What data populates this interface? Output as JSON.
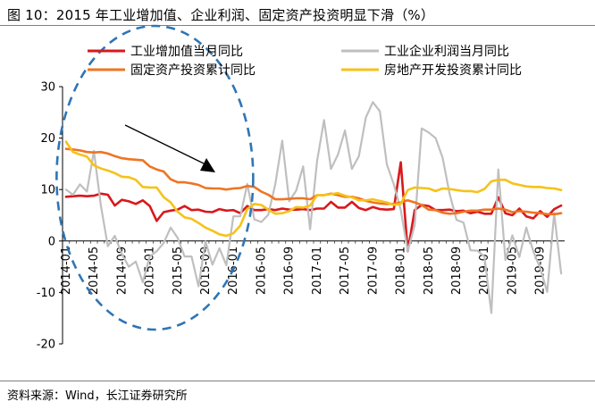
{
  "title": "图 10：2015 年工业增加值、企业利润、固定资产投资明显下滑（%）",
  "source": "资料来源：Wind，长江证券研究所",
  "colors": {
    "industrial_value_added": "#d9181c",
    "industrial_profit": "#bfbfbf",
    "fixed_asset_investment": "#ef7422",
    "real_estate_investment": "#f6c21a",
    "ellipse": "#2e75b6",
    "arrow": "#000000"
  },
  "chart_data": {
    "type": "line",
    "title": "2015 年工业增加值、企业利润、固定资产投资明显下滑（%）",
    "xlabel": "",
    "ylabel": "",
    "ylim": [
      -20,
      30
    ],
    "yticks": [
      -20,
      -10,
      0,
      10,
      20,
      30
    ],
    "grid": false,
    "legend": "top",
    "x": [
      "2014-01",
      "2014-02",
      "2014-03",
      "2014-04",
      "2014-05",
      "2014-06",
      "2014-07",
      "2014-08",
      "2014-09",
      "2014-10",
      "2014-11",
      "2014-12",
      "2015-01",
      "2015-02",
      "2015-03",
      "2015-04",
      "2015-05",
      "2015-06",
      "2015-07",
      "2015-08",
      "2015-09",
      "2015-10",
      "2015-11",
      "2015-12",
      "2016-01",
      "2016-02",
      "2016-03",
      "2016-04",
      "2016-05",
      "2016-06",
      "2016-07",
      "2016-08",
      "2016-09",
      "2016-10",
      "2016-11",
      "2016-12",
      "2017-01",
      "2017-02",
      "2017-03",
      "2017-04",
      "2017-05",
      "2017-06",
      "2017-07",
      "2017-08",
      "2017-09",
      "2017-10",
      "2017-11",
      "2017-12",
      "2018-01",
      "2018-02",
      "2018-03",
      "2018-04",
      "2018-05",
      "2018-06",
      "2018-07",
      "2018-08",
      "2018-09",
      "2018-10",
      "2018-11",
      "2018-12",
      "2019-01",
      "2019-02",
      "2019-03",
      "2019-04",
      "2019-05",
      "2019-06",
      "2019-07",
      "2019-08",
      "2019-09",
      "2019-10",
      "2019-11",
      "2019-12"
    ],
    "x_tick_labels": [
      "2014-01",
      "2014-05",
      "2014-09",
      "2015-01",
      "2015-05",
      "2015-09",
      "2016-01",
      "2016-05",
      "2016-09",
      "2017-01",
      "2017-05",
      "2017-09",
      "2018-01",
      "2018-05",
      "2018-09",
      "2019-01",
      "2019-05",
      "2019-09"
    ],
    "series": [
      {
        "name": "工业增加值当月同比",
        "color_key": "industrial_value_added",
        "values": [
          8.6,
          8.7,
          8.8,
          8.7,
          8.8,
          9.2,
          9.0,
          6.9,
          8.0,
          7.7,
          7.2,
          7.9,
          6.8,
          3.9,
          5.6,
          5.9,
          6.1,
          6.8,
          6.0,
          6.1,
          5.7,
          5.6,
          6.2,
          5.9,
          6.0,
          5.4,
          6.8,
          6.0,
          6.0,
          6.2,
          6.0,
          6.3,
          6.1,
          6.1,
          6.2,
          6.0,
          6.3,
          6.3,
          7.6,
          6.5,
          6.5,
          7.6,
          6.4,
          6.0,
          6.6,
          6.2,
          6.1,
          6.2,
          15.3,
          -2.0,
          6.0,
          7.0,
          6.8,
          6.0,
          6.0,
          6.1,
          5.8,
          5.9,
          5.4,
          5.7,
          5.3,
          5.3,
          8.5,
          5.4,
          5.0,
          6.3,
          4.8,
          4.4,
          5.8,
          4.7,
          6.2,
          6.9
        ]
      },
      {
        "name": "工业企业利润当月同比",
        "color_key": "industrial_profit",
        "values": [
          10.0,
          9.0,
          11.0,
          9.6,
          17.5,
          6.9,
          -1.0,
          1.0,
          -2.5,
          -5.0,
          -4.0,
          -8.0,
          -3.0,
          -2.0,
          -0.4,
          2.6,
          0.6,
          -3.0,
          -3.0,
          -8.8,
          -0.1,
          -4.6,
          -1.4,
          -4.7,
          4.8,
          4.8,
          11.1,
          4.2,
          3.7,
          5.1,
          11.0,
          19.5,
          7.7,
          9.8,
          14.5,
          2.3,
          15.5,
          23.5,
          14.0,
          16.8,
          21.5,
          14.0,
          16.5,
          24.0,
          27.0,
          25.2,
          14.9,
          11.0,
          6.0,
          -2.0,
          3.1,
          21.9,
          21.1,
          20.0,
          16.2,
          9.2,
          4.1,
          3.6,
          -1.8,
          -1.9,
          -3.0,
          -14.0,
          13.9,
          -3.7,
          1.1,
          -3.1,
          2.6,
          -2.0,
          -5.3,
          -9.9,
          5.4,
          -6.3
        ]
      },
      {
        "name": "固定资产投资累计同比",
        "color_key": "fixed_asset_investment",
        "values": [
          17.9,
          17.8,
          17.6,
          17.3,
          17.2,
          17.3,
          17.0,
          16.5,
          16.1,
          15.9,
          15.8,
          15.7,
          14.5,
          13.9,
          13.5,
          12.0,
          11.4,
          11.4,
          11.2,
          10.9,
          10.3,
          10.2,
          10.2,
          10.0,
          10.2,
          10.3,
          10.7,
          10.5,
          9.6,
          9.0,
          8.1,
          8.1,
          8.2,
          8.3,
          8.3,
          8.1,
          8.9,
          8.9,
          9.2,
          8.9,
          8.6,
          8.6,
          8.3,
          7.8,
          7.5,
          7.3,
          7.2,
          7.2,
          7.5,
          7.9,
          7.5,
          7.0,
          6.1,
          6.0,
          5.5,
          5.3,
          5.4,
          5.7,
          5.9,
          5.9,
          6.1,
          6.1,
          6.3,
          6.1,
          5.6,
          5.8,
          5.7,
          5.5,
          5.4,
          5.2,
          5.2,
          5.4
        ]
      },
      {
        "name": "房地产开发投资累计同比",
        "color_key": "real_estate_investment",
        "values": [
          19.3,
          17.3,
          16.8,
          16.4,
          14.7,
          14.1,
          13.7,
          13.2,
          12.5,
          12.4,
          11.9,
          10.5,
          10.4,
          10.4,
          8.5,
          7.5,
          5.7,
          4.6,
          4.3,
          3.5,
          2.6,
          2.0,
          1.3,
          1.0,
          1.5,
          3.0,
          6.2,
          7.2,
          7.0,
          6.1,
          5.3,
          5.4,
          5.8,
          6.6,
          6.5,
          6.9,
          8.9,
          8.9,
          9.1,
          9.3,
          8.8,
          8.5,
          7.9,
          7.9,
          8.1,
          7.8,
          7.5,
          7.0,
          7.2,
          9.9,
          10.4,
          10.3,
          10.2,
          9.7,
          10.2,
          10.1,
          9.9,
          9.7,
          9.7,
          9.5,
          10.1,
          11.6,
          11.9,
          11.9,
          11.2,
          10.9,
          10.6,
          10.5,
          10.5,
          10.3,
          10.2,
          9.9
        ]
      }
    ]
  }
}
